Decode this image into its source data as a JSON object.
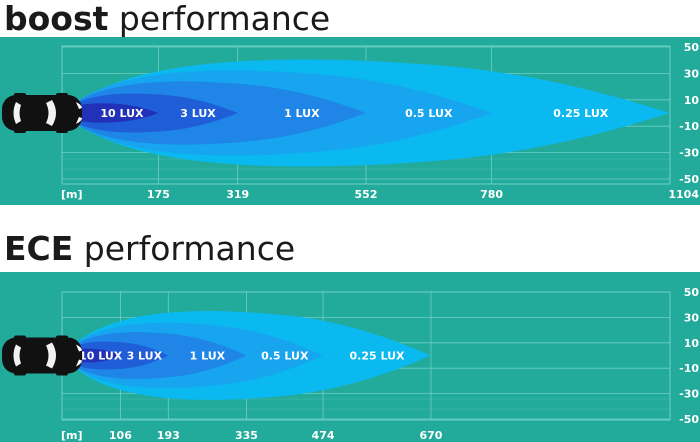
{
  "chart_data": [
    {
      "type": "area",
      "title_bold": "boost",
      "title_rest": " performance",
      "x_unit": "[m]",
      "xlim": [
        0,
        1104
      ],
      "ylim": [
        -50,
        50
      ],
      "x_ticks": [
        175,
        319,
        552,
        780,
        1104
      ],
      "y_ticks": [
        50,
        30,
        10,
        -10,
        -30,
        -50
      ],
      "grid": true,
      "zones": [
        {
          "label": "0.25 LUX",
          "reach": 1104,
          "half_width": 44,
          "color": "#0ab9f0"
        },
        {
          "label": "0.5 LUX",
          "reach": 780,
          "half_width": 35,
          "color": "#16a5ee"
        },
        {
          "label": "1 LUX",
          "reach": 552,
          "half_width": 26,
          "color": "#1f86e8"
        },
        {
          "label": "3 LUX",
          "reach": 319,
          "half_width": 16,
          "color": "#1f5ed6"
        },
        {
          "label": "10 LUX",
          "reach": 175,
          "half_width": 8,
          "color": "#2232b8"
        }
      ]
    },
    {
      "type": "area",
      "title_bold": "ECE",
      "title_rest": " performance",
      "x_unit": "[m]",
      "xlim": [
        0,
        1104
      ],
      "ylim": [
        -50,
        50
      ],
      "x_ticks": [
        106,
        193,
        335,
        474,
        670
      ],
      "y_ticks": [
        50,
        30,
        10,
        -10,
        -30,
        -50
      ],
      "grid": true,
      "zones": [
        {
          "label": "0.25 LUX",
          "reach": 670,
          "half_width": 38,
          "color": "#0ab9f0"
        },
        {
          "label": "0.5 LUX",
          "reach": 474,
          "half_width": 28,
          "color": "#16a5ee"
        },
        {
          "label": "1 LUX",
          "reach": 335,
          "half_width": 20,
          "color": "#1f86e8"
        },
        {
          "label": "3 LUX",
          "reach": 193,
          "half_width": 12,
          "color": "#1f5ed6"
        },
        {
          "label": "10 LUX",
          "reach": 106,
          "half_width": 6,
          "color": "#2232b8"
        }
      ]
    }
  ],
  "colors": {
    "background": "#22aa9a",
    "grid": "#6fd0c5",
    "text": "#ffffff",
    "title": "#1a1a1a"
  },
  "icons": {
    "car": "car-top-view-icon"
  }
}
